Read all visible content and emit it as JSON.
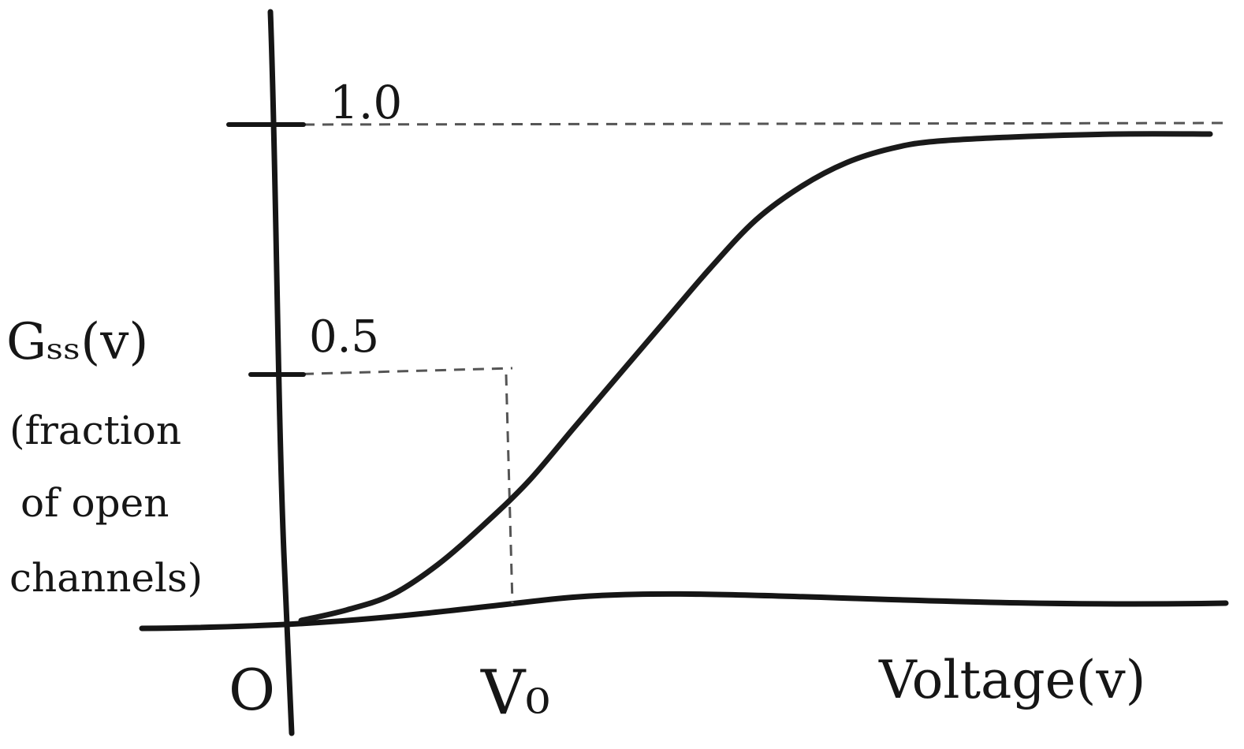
{
  "chart_data": {
    "type": "line",
    "xlabel": "Voltage(v)",
    "ylabel_lines": [
      "Gₛₛ(v)",
      "(fraction",
      "of open",
      "channels)"
    ],
    "x_tick_labels": [
      "O",
      "V₀"
    ],
    "y_tick_labels": [
      "0.5",
      "1.0"
    ],
    "y_ticks": [
      0.5,
      1.0
    ],
    "ylim": [
      0,
      1.0
    ],
    "grid": false,
    "reference_lines": [
      {
        "axis": "y",
        "value": 1.0,
        "style": "dashed"
      },
      {
        "axis": "y",
        "value": 0.5,
        "style": "dashed",
        "to_x": "V₀"
      },
      {
        "axis": "x",
        "value": "V₀",
        "style": "dashed",
        "to_y": 0.5
      }
    ],
    "series": [
      {
        "description_of_shape": "sigmoid",
        "points_normalized": [
          [
            0.0,
            0.0
          ],
          [
            0.05,
            0.02
          ],
          [
            0.1,
            0.05
          ],
          [
            0.15,
            0.11
          ],
          [
            0.2,
            0.19
          ],
          [
            0.25,
            0.28
          ],
          [
            0.3,
            0.39
          ],
          [
            0.35,
            0.5
          ],
          [
            0.4,
            0.61
          ],
          [
            0.45,
            0.72
          ],
          [
            0.5,
            0.82
          ],
          [
            0.55,
            0.89
          ],
          [
            0.6,
            0.94
          ],
          [
            0.65,
            0.97
          ],
          [
            0.7,
            0.985
          ],
          [
            0.8,
            0.995
          ],
          [
            0.9,
            1.0
          ],
          [
            1.0,
            1.0
          ]
        ]
      }
    ]
  }
}
